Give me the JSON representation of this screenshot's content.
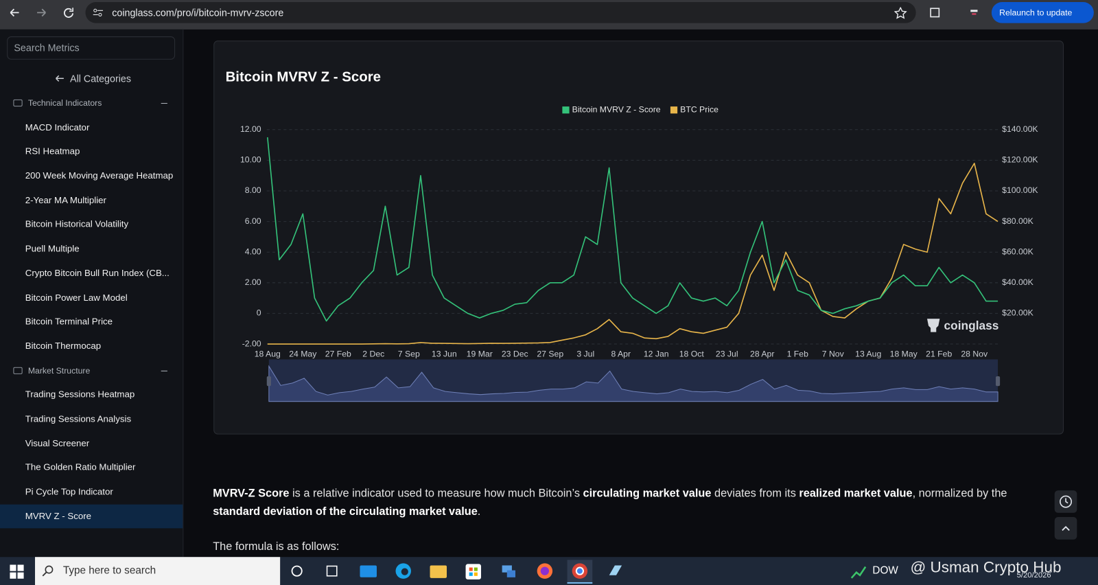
{
  "browser": {
    "url": "coinglass.com/pro/i/bitcoin-mvrv-zscore",
    "relaunch": "Relaunch to update"
  },
  "sidebar": {
    "search_placeholder": "Search Metrics",
    "back": "All Categories",
    "groups": [
      {
        "title": "Technical Indicators",
        "items": [
          "MACD Indicator",
          "RSI Heatmap",
          "200 Week Moving Average Heatmap",
          "2-Year MA Multiplier",
          "Bitcoin Historical Volatility",
          "Puell Multiple",
          "Crypto Bitcoin Bull Run Index (CB...",
          "Bitcoin Power Law Model",
          "Bitcoin Terminal Price",
          "Bitcoin Thermocap"
        ]
      },
      {
        "title": "Market Structure",
        "items": [
          "Trading Sessions Heatmap",
          "Trading Sessions Analysis",
          "Visual Screener",
          "The Golden Ratio Multiplier",
          "Pi Cycle Top Indicator",
          "MVRV Z - Score"
        ],
        "active_index": 5
      }
    ]
  },
  "chart_data": {
    "type": "line",
    "title": "Bitcoin MVRV Z - Score",
    "watermark": "coinglass",
    "legend": "top",
    "categories": [
      "18 Aug",
      null,
      null,
      "24 May",
      null,
      null,
      "27 Feb",
      null,
      null,
      "2 Dec",
      null,
      null,
      "7 Sep",
      null,
      null,
      "13 Jun",
      null,
      null,
      "19 Mar",
      null,
      null,
      "23 Dec",
      null,
      null,
      "27 Sep",
      null,
      null,
      "3 Jul",
      null,
      null,
      "8 Apr",
      null,
      null,
      "12 Jan",
      null,
      null,
      "18 Oct",
      null,
      null,
      "23 Jul",
      null,
      null,
      "28 Apr",
      null,
      null,
      "1 Feb",
      null,
      null,
      "7 Nov",
      null,
      null,
      "13 Aug",
      null,
      null,
      "18 May",
      null,
      null,
      "21 Feb",
      null,
      null,
      "28 Nov",
      null,
      null
    ],
    "series": [
      {
        "name": "Bitcoin MVRV Z - Score",
        "color": "#34c27a",
        "values": [
          11.5,
          3.5,
          4.5,
          6.5,
          1.0,
          -0.5,
          0.5,
          1.0,
          2.0,
          2.8,
          7.0,
          2.5,
          3.0,
          9.0,
          2.5,
          1.0,
          0.5,
          0.0,
          -0.3,
          0.0,
          0.2,
          0.6,
          0.7,
          1.5,
          2.0,
          2.0,
          2.5,
          5.0,
          4.5,
          9.5,
          2.0,
          1.0,
          0.5,
          0.0,
          0.5,
          2.0,
          1.0,
          0.8,
          1.0,
          0.5,
          1.5,
          4.0,
          6.0,
          2.0,
          3.5,
          1.5,
          1.2,
          0.2,
          0.0,
          0.3,
          0.5,
          0.8,
          1.0,
          2.0,
          2.5,
          1.8,
          1.8,
          3.0,
          2.0,
          2.5,
          2.0,
          0.8,
          0.8
        ]
      },
      {
        "name": "BTC Price",
        "color": "#e8b54a",
        "axis": "y2",
        "values": [
          0,
          0,
          0,
          0,
          0,
          0,
          0,
          0,
          0,
          100,
          200,
          100,
          200,
          900,
          500,
          400,
          300,
          200,
          300,
          500,
          400,
          500,
          600,
          700,
          1000,
          2500,
          4000,
          6000,
          10000,
          16000,
          8000,
          7000,
          4000,
          3500,
          5000,
          10000,
          8000,
          7000,
          9000,
          11000,
          20000,
          45000,
          58000,
          35000,
          60000,
          45000,
          40000,
          22000,
          18000,
          17000,
          23000,
          28000,
          30000,
          43000,
          65000,
          62000,
          60000,
          95000,
          85000,
          105000,
          118000,
          85000,
          80000
        ]
      }
    ],
    "ylim": [
      -2,
      12
    ],
    "yticks": [
      {
        "value": -2,
        "label": "-2.00"
      },
      0,
      {
        "value": 2,
        "label": "2.00"
      },
      {
        "value": 4,
        "label": "4.00"
      },
      {
        "value": 6,
        "label": "6.00"
      },
      {
        "value": 8,
        "label": "8.00"
      },
      {
        "value": 10,
        "label": "10.00"
      },
      {
        "value": 12,
        "label": "12.00"
      }
    ],
    "y2lim": [
      0,
      140000
    ],
    "y2ticks": [
      {
        "value": 20000,
        "label": "$20.00K"
      },
      {
        "value": 40000,
        "label": "$40.00K"
      },
      {
        "value": 60000,
        "label": "$60.00K"
      },
      {
        "value": 80000,
        "label": "$80.00K"
      },
      {
        "value": 100000,
        "label": "$100.00K"
      },
      {
        "value": 120000,
        "label": "$120.00K"
      },
      {
        "value": 140000,
        "label": "$140.00K"
      }
    ],
    "grid": true,
    "navigator": true
  },
  "article": {
    "paragraph": [
      {
        "text": "MVRV-Z Score",
        "bold": true
      },
      {
        "text": " is a relative indicator used to measure how much Bitcoin’s ",
        "bold": false
      },
      {
        "text": "circulating market value",
        "bold": true
      },
      {
        "text": " deviates from its ",
        "bold": false
      },
      {
        "text": "realized market value",
        "bold": true
      },
      {
        "text": ", normalized by the ",
        "bold": false
      },
      {
        "text": "standard deviation of the circulating market value",
        "bold": true
      },
      {
        "text": ".",
        "bold": false
      }
    ],
    "formula_intro": "The formula is as follows:"
  },
  "taskbar": {
    "search": "Type here to search",
    "ticker": "DOW",
    "watermark": "@ Usman Crypto Hub",
    "date": "5/20/2026"
  }
}
